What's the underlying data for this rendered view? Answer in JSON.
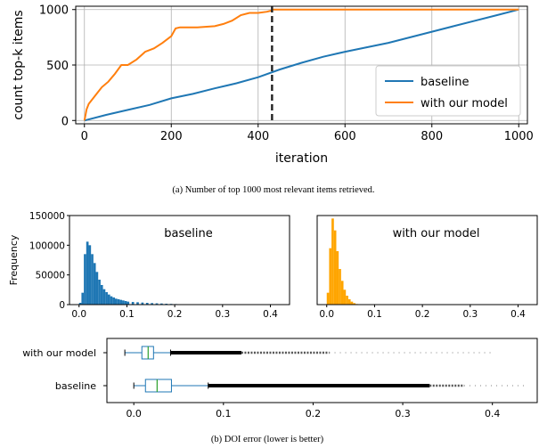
{
  "captions": {
    "a": "(a) Number of top 1000 most relevant items retrieved.",
    "b": "(b) DOI error (lower is better)"
  },
  "colors": {
    "baseline": "#1f77b4",
    "with_our_model": "#ff7f0e",
    "hist_right": "#ffa500",
    "box_median": "#2ca02c",
    "grid": "#b0b0b0"
  },
  "chart_data": [
    {
      "type": "line",
      "xlabel": "iteration",
      "ylabel": "count top-k items",
      "xlim": [
        -20,
        1020
      ],
      "ylim": [
        -30,
        1030
      ],
      "xticks": [
        0,
        200,
        400,
        600,
        800,
        1000
      ],
      "yticks": [
        0,
        500,
        1000
      ],
      "grid": true,
      "legend": "lower-right",
      "vline": {
        "x": 432,
        "style": "dashed"
      },
      "series": [
        {
          "name": "baseline",
          "color": "#1f77b4",
          "x": [
            0,
            50,
            100,
            150,
            200,
            250,
            300,
            350,
            400,
            450,
            500,
            550,
            600,
            650,
            700,
            750,
            800,
            850,
            900,
            950,
            1000
          ],
          "y": [
            0,
            50,
            95,
            140,
            200,
            240,
            290,
            335,
            390,
            460,
            520,
            575,
            620,
            660,
            700,
            750,
            800,
            850,
            900,
            950,
            1000
          ]
        },
        {
          "name": "with our model",
          "color": "#ff7f0e",
          "x": [
            0,
            5,
            10,
            20,
            30,
            40,
            55,
            70,
            85,
            100,
            120,
            140,
            160,
            180,
            200,
            210,
            220,
            260,
            300,
            320,
            340,
            360,
            380,
            400,
            420,
            430,
            432,
            600,
            800,
            1000
          ],
          "y": [
            0,
            100,
            150,
            200,
            250,
            300,
            350,
            420,
            500,
            500,
            550,
            620,
            650,
            700,
            760,
            830,
            840,
            840,
            850,
            870,
            900,
            950,
            970,
            970,
            980,
            990,
            1000,
            1000,
            1000,
            1000
          ]
        }
      ]
    },
    {
      "type": "bar",
      "title": "baseline",
      "ylabel": "Frequency",
      "color": "#1f77b4",
      "xlim": [
        -0.02,
        0.44
      ],
      "ylim": [
        0,
        150000
      ],
      "xticks": [
        0.0,
        0.1,
        0.2,
        0.3,
        0.4
      ],
      "yticks": [
        0,
        50000,
        100000,
        150000
      ],
      "bin_width": 0.005,
      "x": [
        0.0,
        0.005,
        0.01,
        0.015,
        0.02,
        0.025,
        0.03,
        0.035,
        0.04,
        0.045,
        0.05,
        0.055,
        0.06,
        0.065,
        0.07,
        0.075,
        0.08,
        0.085,
        0.09,
        0.095,
        0.1,
        0.11,
        0.12,
        0.13,
        0.14,
        0.15,
        0.16,
        0.17,
        0.18,
        0.19,
        0.2,
        0.21,
        0.22
      ],
      "values": [
        3000,
        20000,
        85000,
        106000,
        100000,
        85000,
        70000,
        55000,
        42000,
        33000,
        26000,
        21000,
        17000,
        14000,
        12000,
        10000,
        9000,
        8000,
        7000,
        6000,
        5000,
        4500,
        4000,
        3500,
        3000,
        2600,
        2200,
        1900,
        1500,
        1200,
        900,
        600,
        300
      ]
    },
    {
      "type": "bar",
      "title": "with our model",
      "color": "#ffa500",
      "xlim": [
        -0.02,
        0.44
      ],
      "ylim": [
        0,
        150000
      ],
      "xticks": [
        0.0,
        0.1,
        0.2,
        0.3,
        0.4
      ],
      "bin_width": 0.005,
      "x": [
        0.0,
        0.005,
        0.01,
        0.015,
        0.02,
        0.025,
        0.03,
        0.035,
        0.04,
        0.045,
        0.05,
        0.055,
        0.06
      ],
      "values": [
        20000,
        95000,
        145000,
        125000,
        90000,
        60000,
        40000,
        25000,
        15000,
        9000,
        5000,
        2500,
        1000
      ]
    },
    {
      "type": "box",
      "xlim": [
        -0.03,
        0.45
      ],
      "xticks": [
        0.0,
        0.1,
        0.2,
        0.3,
        0.4
      ],
      "categories": [
        "with our model",
        "baseline"
      ],
      "boxes": [
        {
          "name": "with our model",
          "whislo": -0.01,
          "q1": 0.009,
          "med": 0.016,
          "q3": 0.022,
          "whishi": 0.041,
          "flier_dense_end": 0.12,
          "flier_max": 0.4
        },
        {
          "name": "baseline",
          "whislo": 0.0,
          "q1": 0.013,
          "med": 0.026,
          "q3": 0.042,
          "whishi": 0.083,
          "flier_dense_end": 0.33,
          "flier_max": 0.44
        }
      ]
    }
  ]
}
